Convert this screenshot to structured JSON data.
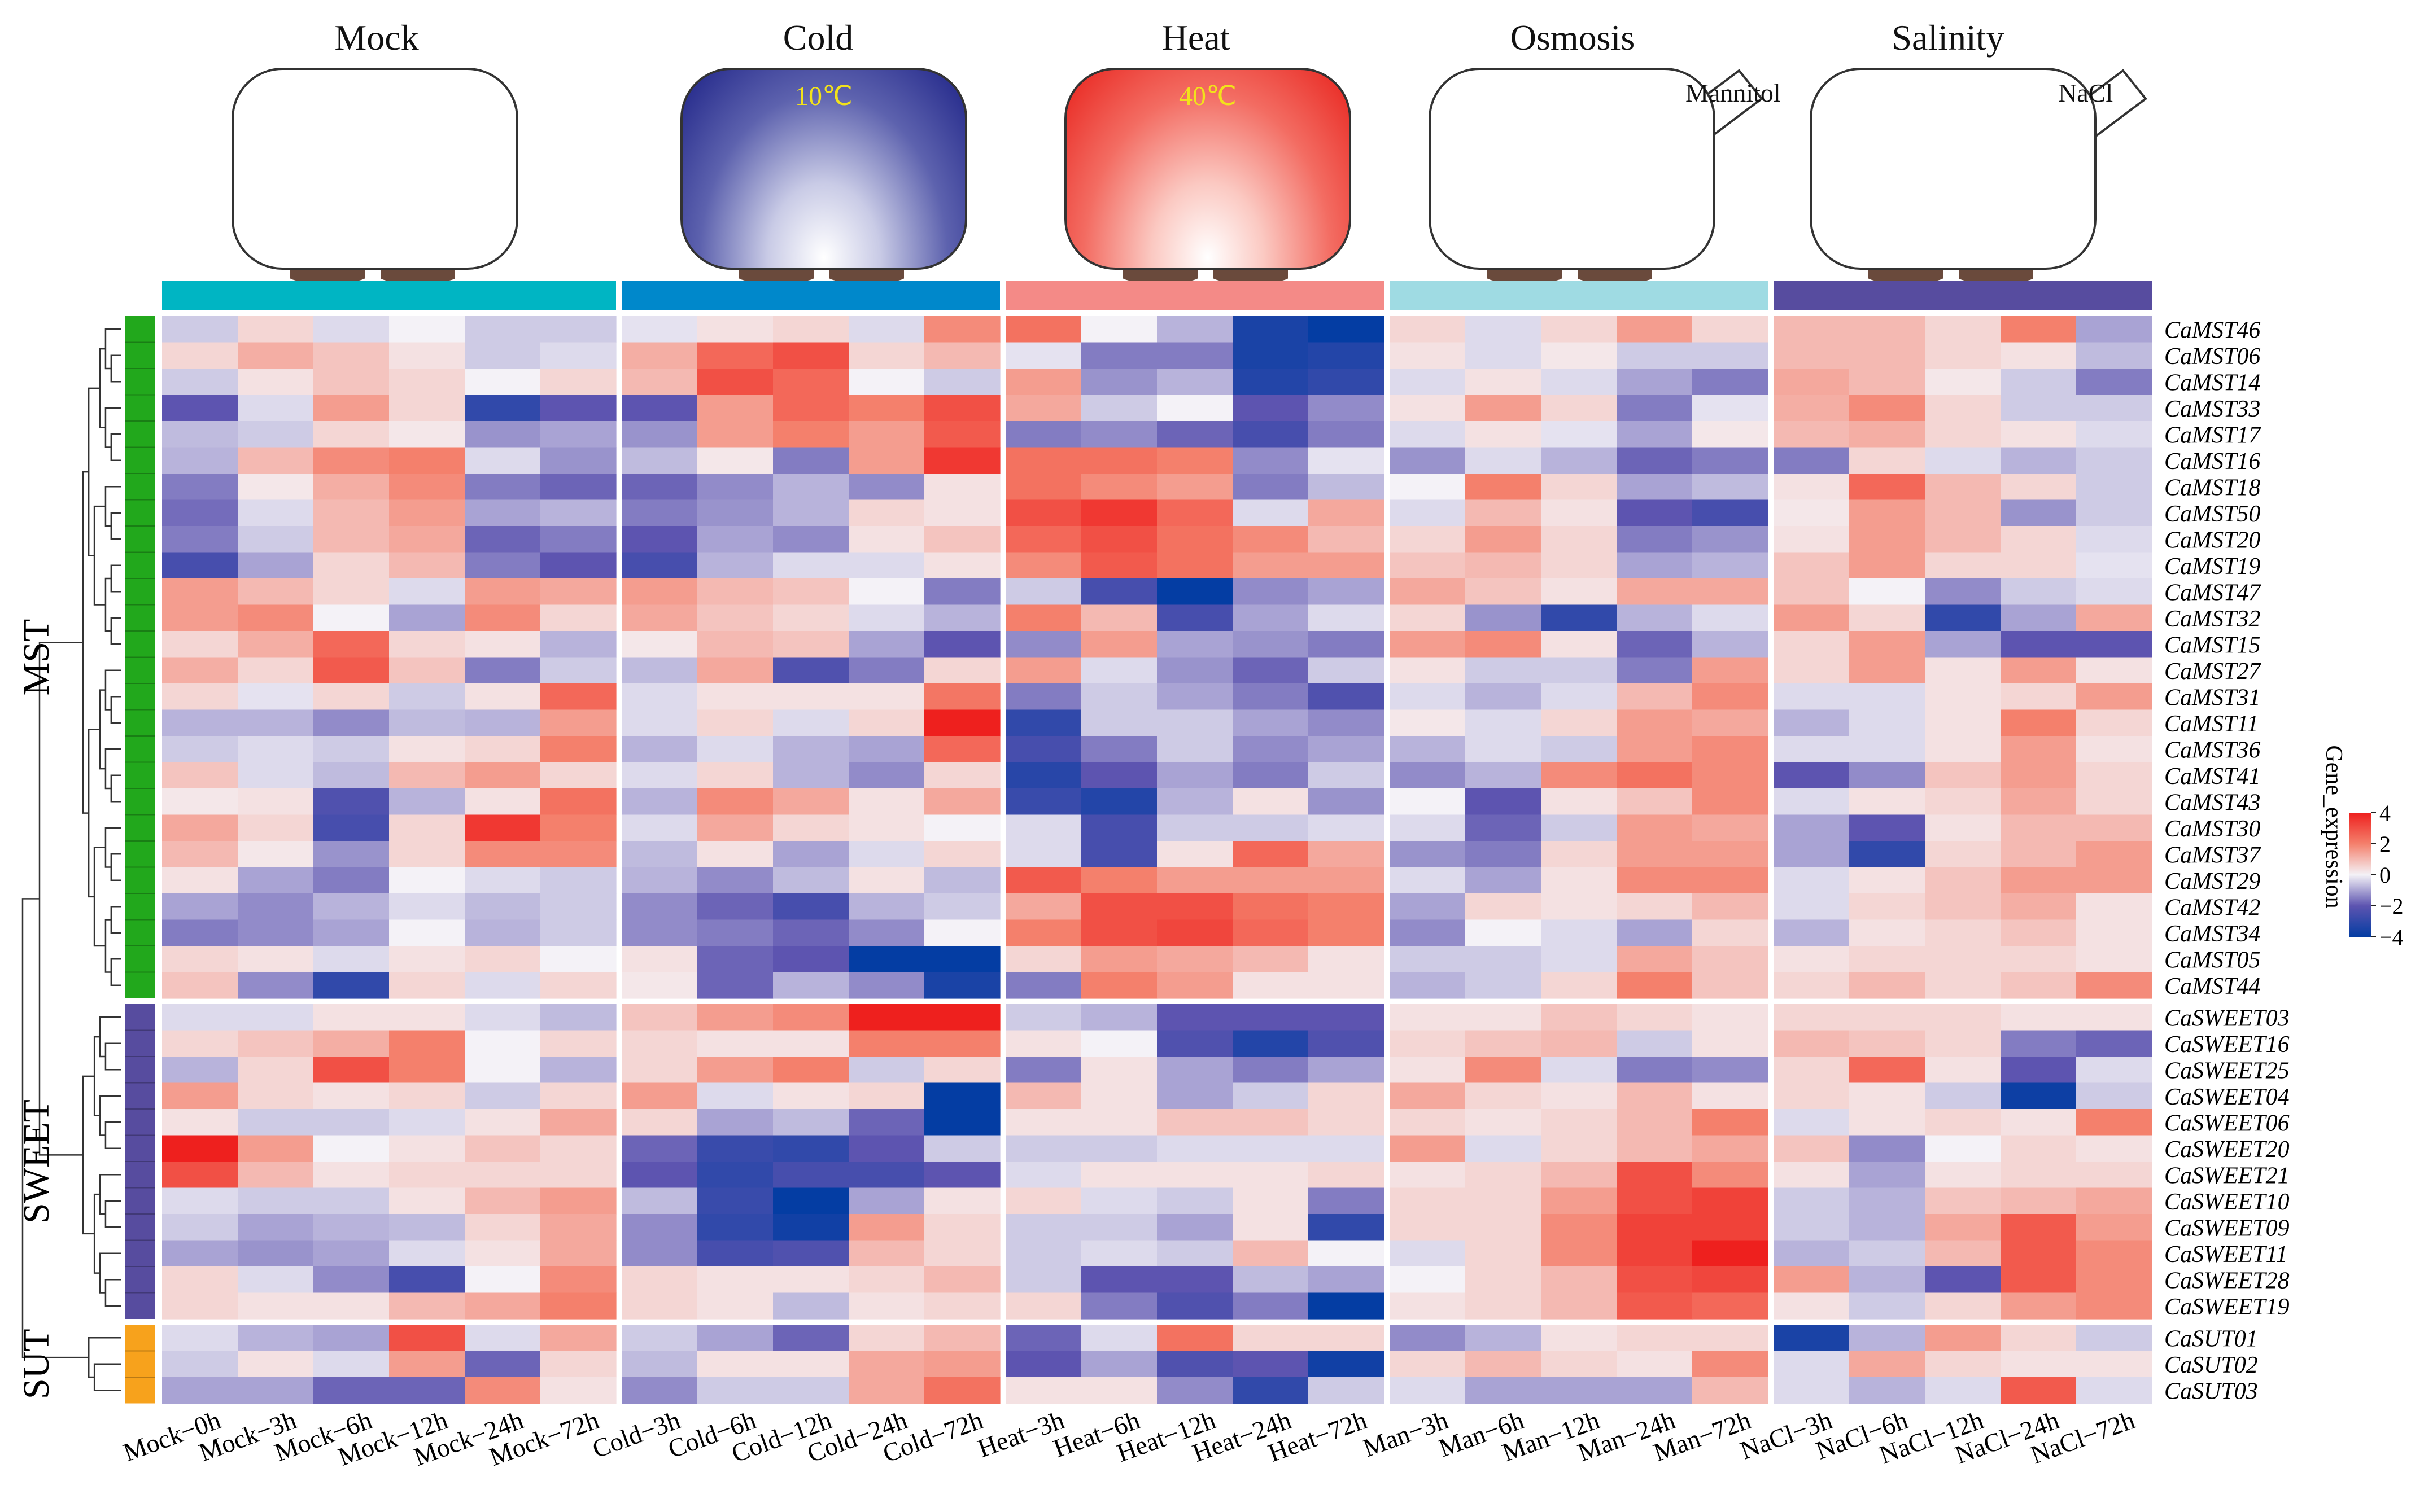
{
  "chart_data": {
    "type": "heatmap",
    "groups": [
      {
        "name": "Mock",
        "color": "#00b5c3"
      },
      {
        "name": "Cold",
        "color": "#0088cb"
      },
      {
        "name": "Heat",
        "color": "#f48a87"
      },
      {
        "name": "Osmosis",
        "color": "#9fdbe3"
      },
      {
        "name": "Salinity",
        "color": "#574c9f"
      }
    ],
    "stage_labels": {
      "cold_temp": "10℃",
      "heat_temp": "40℃",
      "osmosis_agent": "Mannitol",
      "salinity_agent": "NaCl"
    },
    "columns": [
      "Mock−0h",
      "Mock−3h",
      "Mock−6h",
      "Mock−12h",
      "Mock−24h",
      "Mock−72h",
      "Cold−3h",
      "Cold−6h",
      "Cold−12h",
      "Cold−24h",
      "Cold−72h",
      "Heat−3h",
      "Heat−6h",
      "Heat−12h",
      "Heat−24h",
      "Heat−72h",
      "Man−3h",
      "Man−6h",
      "Man−12h",
      "Man−24h",
      "Man−72h",
      "NaCl−3h",
      "NaCl−6h",
      "NaCl−12h",
      "NaCl−24h",
      "NaCl−72h"
    ],
    "column_group_sizes": [
      6,
      5,
      5,
      5,
      5
    ],
    "row_groups": [
      {
        "name": "MST",
        "color": "#22a81c",
        "size": 26
      },
      {
        "name": "SWEET",
        "color": "#574c9f",
        "size": 12
      },
      {
        "name": "SUT",
        "color": "#f7a21c",
        "size": 3
      }
    ],
    "rows": [
      "CaMST46",
      "CaMST06",
      "CaMST14",
      "CaMST33",
      "CaMST17",
      "CaMST16",
      "CaMST18",
      "CaMST50",
      "CaMST20",
      "CaMST19",
      "CaMST47",
      "CaMST32",
      "CaMST15",
      "CaMST27",
      "CaMST31",
      "CaMST11",
      "CaMST36",
      "CaMST41",
      "CaMST43",
      "CaMST30",
      "CaMST37",
      "CaMST29",
      "CaMST42",
      "CaMST34",
      "CaMST05",
      "CaMST44",
      "CaSWEET03",
      "CaSWEET16",
      "CaSWEET25",
      "CaSWEET04",
      "CaSWEET06",
      "CaSWEET20",
      "CaSWEET21",
      "CaSWEET10",
      "CaSWEET09",
      "CaSWEET11",
      "CaSWEET28",
      "CaSWEET19",
      "CaSUT01",
      "CaSUT02",
      "CaSUT03"
    ],
    "values": [
      [
        -0.5,
        0.5,
        -0.3,
        0,
        -0.5,
        -0.5,
        -0.2,
        0.3,
        0.5,
        -0.3,
        1.8,
        2.3,
        0,
        -0.8,
        -3.5,
        -4,
        0.5,
        -0.3,
        0.5,
        1.5,
        0.5,
        1,
        1,
        0.5,
        2,
        -1
      ],
      [
        0.5,
        1.2,
        0.8,
        0.3,
        -0.5,
        -0.3,
        1.2,
        2.5,
        3,
        0.5,
        1,
        -0.2,
        -1.5,
        -1.5,
        -3.5,
        -3.3,
        0.3,
        -0.3,
        0.2,
        -0.5,
        -0.5,
        1,
        1,
        0.5,
        0.3,
        -0.7
      ],
      [
        -0.5,
        0.3,
        0.8,
        0.5,
        0,
        0.5,
        1,
        3,
        2.5,
        0,
        -0.5,
        1.5,
        -1.2,
        -0.8,
        -3.3,
        -3,
        -0.3,
        0.3,
        -0.3,
        -1,
        -1.5,
        1.3,
        1,
        0.2,
        -0.5,
        -1.5
      ],
      [
        -2,
        -0.3,
        1.5,
        0.5,
        -3,
        -2,
        -2,
        1.5,
        2.5,
        2,
        3,
        1.3,
        -0.5,
        0,
        -2,
        -1.3,
        0.3,
        1.5,
        0.5,
        -1.5,
        -0.2,
        1.2,
        1.8,
        0.5,
        -0.5,
        -0.5
      ],
      [
        -0.7,
        -0.5,
        0.5,
        0.2,
        -1.2,
        -1,
        -1.2,
        1.5,
        2,
        1.5,
        2.8,
        -1.5,
        -1.3,
        -1.8,
        -2.5,
        -1.5,
        -0.3,
        0.3,
        -0.2,
        -1,
        0.2,
        1,
        1.2,
        0.5,
        0.3,
        -0.3
      ],
      [
        -0.8,
        1,
        1.8,
        2,
        -0.3,
        -1.2,
        -0.7,
        0.2,
        -1.5,
        1.5,
        3.5,
        2.3,
        2.3,
        2,
        -1.3,
        -0.2,
        -1.2,
        -0.3,
        -0.8,
        -1.8,
        -1.5,
        -1.5,
        0.5,
        -0.3,
        -0.8,
        -0.5
      ],
      [
        -1.5,
        0.2,
        1.2,
        1.8,
        -1.5,
        -1.8,
        -1.8,
        -1.3,
        -0.8,
        -1.3,
        0.3,
        2.3,
        1.8,
        1.5,
        -1.5,
        -0.7,
        0,
        2,
        0.5,
        -1,
        -0.7,
        0.3,
        2.5,
        1,
        0.5,
        -0.5
      ],
      [
        -1.7,
        -0.3,
        1,
        1.5,
        -1,
        -0.8,
        -1.5,
        -1.2,
        -0.8,
        0.5,
        0.3,
        3,
        3.5,
        2.5,
        -0.3,
        1.3,
        -0.3,
        1,
        0.3,
        -2,
        -2.5,
        0.2,
        1.5,
        1,
        -1.2,
        -0.5
      ],
      [
        -1.5,
        -0.5,
        1,
        1.3,
        -1.8,
        -1.5,
        -2,
        -1,
        -1.3,
        0.3,
        0.8,
        2.5,
        3,
        2.3,
        1.8,
        1,
        0.5,
        1.5,
        0.5,
        -1.5,
        -1.2,
        0.3,
        1.5,
        1,
        0.5,
        -0.3
      ],
      [
        -2.5,
        -1,
        0.5,
        1,
        -1.5,
        -2,
        -2.5,
        -0.8,
        -0.3,
        -0.3,
        0.3,
        1.8,
        2.8,
        2.3,
        1.5,
        1.5,
        0.8,
        1,
        0.5,
        -1,
        -0.8,
        0.8,
        1.5,
        0.5,
        0.5,
        -0.2
      ],
      [
        1.5,
        1,
        0.5,
        -0.3,
        1.5,
        1.3,
        1.5,
        1,
        0.8,
        0,
        -1.5,
        -0.5,
        -2.5,
        -4,
        -1.3,
        -1,
        1.3,
        0.8,
        0.3,
        1.3,
        1.3,
        0.8,
        0,
        -1.3,
        -0.5,
        -0.3
      ],
      [
        1.5,
        1.8,
        0,
        -1,
        1.8,
        0.5,
        1.3,
        0.8,
        0.5,
        -0.3,
        -0.8,
        2,
        1,
        -2.5,
        -1,
        -0.3,
        0.5,
        -1.2,
        -3,
        -0.8,
        -0.3,
        1.5,
        0.5,
        -3,
        -1,
        1.3
      ],
      [
        0.5,
        1.2,
        2.5,
        0.5,
        0.3,
        -0.8,
        0.2,
        1,
        0.8,
        -1,
        -2,
        -1.3,
        1.5,
        -1,
        -1.2,
        -1.5,
        1.5,
        1.8,
        0.3,
        -1.8,
        -0.8,
        0.5,
        1.5,
        -1,
        -2,
        -2
      ],
      [
        1.2,
        0.5,
        2.8,
        0.8,
        -1.5,
        -0.5,
        -0.7,
        1.3,
        -2.3,
        -1.5,
        0.5,
        1.5,
        -0.3,
        -1.2,
        -1.8,
        -0.5,
        0.3,
        -0.5,
        -0.5,
        -1.5,
        1.5,
        0.5,
        1.5,
        0.3,
        1.5,
        0.3
      ],
      [
        0.5,
        -0.2,
        0.5,
        -0.5,
        0.3,
        2.5,
        -0.3,
        0.3,
        0.3,
        0.3,
        2.2,
        -1.5,
        -0.5,
        -1,
        -1.5,
        -2.3,
        -0.3,
        -0.8,
        -0.3,
        1,
        1.8,
        -0.3,
        -0.3,
        0.3,
        0.5,
        1.5
      ],
      [
        -0.8,
        -0.8,
        -1.3,
        -0.7,
        -0.8,
        1.5,
        -0.3,
        0.5,
        -0.3,
        0.5,
        4,
        -3,
        -0.5,
        -0.5,
        -1,
        -1.3,
        0.2,
        -0.3,
        0.5,
        1.5,
        1.3,
        -0.8,
        -0.3,
        0.3,
        2,
        0.5
      ],
      [
        -0.5,
        -0.3,
        -0.5,
        0.3,
        0.5,
        2,
        -0.8,
        -0.3,
        -0.8,
        -1,
        2.5,
        -2.5,
        -1.5,
        -0.5,
        -1.3,
        -1,
        -0.8,
        -0.3,
        -0.5,
        1.5,
        1.8,
        -0.3,
        -0.3,
        0.3,
        1.5,
        0.3
      ],
      [
        0.8,
        -0.3,
        -0.7,
        1,
        1.5,
        0.5,
        -0.3,
        0.5,
        -0.8,
        -1.3,
        0.5,
        -3.2,
        -2,
        -1,
        -1.5,
        -0.5,
        -1.3,
        -0.8,
        1.8,
        2.3,
        1.8,
        -2,
        -1.3,
        0.8,
        1.5,
        0.5
      ],
      [
        0.2,
        0.3,
        -2.3,
        -0.8,
        0.3,
        2.3,
        -0.8,
        1.8,
        1.3,
        0.3,
        1.3,
        -2.8,
        -3.3,
        -0.8,
        0.3,
        -1.2,
        0,
        -2,
        0.3,
        0.8,
        1.8,
        -0.3,
        0.3,
        0.5,
        1.3,
        0.5
      ],
      [
        1.3,
        0.5,
        -2.5,
        0.5,
        3.5,
        2,
        -0.3,
        1.3,
        0.5,
        0.3,
        0,
        -0.3,
        -2.5,
        -0.5,
        -0.5,
        -0.3,
        -0.3,
        -1.8,
        -0.5,
        1.5,
        1.3,
        -1,
        -2,
        0.3,
        1,
        1
      ],
      [
        1,
        0.2,
        -1.2,
        0.5,
        1.8,
        1.8,
        -0.7,
        0.3,
        -1,
        -0.3,
        0.5,
        -0.3,
        -2.5,
        0.3,
        2.5,
        1.3,
        -1.2,
        -1.5,
        0.5,
        1.5,
        1.5,
        -1,
        -3,
        0.5,
        1,
        1.5
      ],
      [
        0.3,
        -1,
        -1.5,
        0,
        -0.3,
        -0.5,
        -0.8,
        -1.3,
        -0.7,
        0.3,
        -0.7,
        2.8,
        2,
        1.5,
        1.5,
        1.5,
        -0.3,
        -1,
        0.3,
        1.8,
        1.8,
        -0.3,
        0.3,
        0.8,
        1.5,
        1.5
      ],
      [
        -1,
        -1.3,
        -0.8,
        -0.3,
        -0.7,
        -0.5,
        -1.3,
        -1.8,
        -2.5,
        -0.8,
        -0.5,
        1.3,
        3,
        3,
        2.3,
        2,
        -1,
        0.5,
        0.3,
        0.5,
        1,
        -0.3,
        0.5,
        0.8,
        1.2,
        0.3
      ],
      [
        -1.5,
        -1.3,
        -1,
        0,
        -0.8,
        -0.5,
        -1.3,
        -1.5,
        -1.8,
        -1.3,
        0,
        2,
        3,
        3.2,
        2.5,
        2,
        -1.3,
        0,
        -0.3,
        -1,
        0.5,
        -0.8,
        0.3,
        0.5,
        0.8,
        0.3
      ],
      [
        0.5,
        0.3,
        -0.3,
        0.3,
        0.5,
        0,
        0.3,
        -1.8,
        -2,
        -4,
        -4,
        0.5,
        1.5,
        1.3,
        1,
        0.3,
        -0.5,
        -0.5,
        -0.3,
        1.3,
        0.8,
        0.3,
        0.5,
        0.5,
        0.5,
        0.3
      ],
      [
        0.8,
        -1.3,
        -3,
        0.5,
        -0.3,
        0.5,
        0.2,
        -1.8,
        -0.8,
        -1.3,
        -3.5,
        -1.5,
        2,
        1.5,
        0.3,
        0.3,
        -0.8,
        -0.5,
        0.5,
        2,
        0.8,
        0.5,
        1,
        0.5,
        0.8,
        1.8
      ],
      [
        -0.3,
        -0.3,
        0.3,
        0.3,
        -0.3,
        -0.7,
        0.8,
        1.5,
        1.8,
        4,
        4,
        -0.5,
        -0.8,
        -2,
        -2,
        -2,
        0.3,
        0.3,
        0.8,
        0.5,
        0.3,
        0.5,
        0.5,
        0.5,
        0.3,
        0.3
      ],
      [
        0.5,
        0.8,
        1.2,
        2,
        0,
        0.5,
        0.5,
        0.3,
        0.3,
        2,
        2,
        0.3,
        0,
        -2.3,
        -3.3,
        -2.3,
        0.5,
        0.8,
        1,
        -0.5,
        0.3,
        1,
        0.8,
        0.5,
        -1.5,
        -1.8
      ],
      [
        -0.8,
        0.5,
        3,
        2,
        0,
        -0.8,
        0.5,
        1.5,
        2,
        -0.5,
        0.5,
        -1.5,
        0.3,
        -1,
        -1.5,
        -1,
        0.3,
        1.8,
        -0.3,
        -1.5,
        -1.3,
        0.5,
        2.5,
        0.3,
        -2,
        -0.3
      ],
      [
        1.5,
        0.5,
        0.3,
        0.5,
        -0.5,
        0.5,
        1.5,
        -0.3,
        0.3,
        0.5,
        -4,
        1,
        0.3,
        -1,
        -0.5,
        0.5,
        1.3,
        0.5,
        0.3,
        1,
        0.3,
        0.5,
        0.3,
        -0.5,
        -3.8,
        -0.5
      ],
      [
        0.3,
        -0.5,
        -0.5,
        -0.3,
        0.3,
        1.3,
        0.5,
        -1,
        -0.7,
        -1.8,
        -4,
        0.3,
        0.3,
        0.8,
        0.8,
        0.5,
        0.5,
        0.3,
        0.5,
        1,
        2,
        -0.3,
        0.3,
        0.5,
        0.3,
        2
      ],
      [
        4,
        1.5,
        0,
        0.3,
        0.8,
        0.5,
        -1.8,
        -2.8,
        -3,
        -2,
        -0.5,
        -0.5,
        -0.5,
        -0.3,
        -0.3,
        -0.3,
        1.5,
        -0.3,
        0.5,
        1,
        1.3,
        0.8,
        -1.3,
        0,
        0.5,
        0.3
      ],
      [
        3,
        1,
        0.3,
        0.5,
        0.5,
        0.5,
        -2,
        -3,
        -2.5,
        -2.5,
        -2,
        -0.3,
        0.3,
        0.3,
        0.3,
        0.5,
        0.3,
        0.5,
        1,
        3,
        1.8,
        0.3,
        -1,
        0.3,
        0.5,
        0.5
      ],
      [
        -0.3,
        -0.5,
        -0.5,
        0.3,
        1,
        1.5,
        -0.7,
        -2.8,
        -4,
        -1,
        0.3,
        0.5,
        -0.3,
        -0.5,
        0.3,
        -1.5,
        0.5,
        0.5,
        1.5,
        3,
        3.3,
        -0.5,
        -0.8,
        0.8,
        1,
        1.3
      ],
      [
        -0.5,
        -1,
        -0.8,
        -0.7,
        0.5,
        1.3,
        -1.3,
        -3,
        -3.7,
        1.5,
        0.5,
        -0.5,
        -0.5,
        -1,
        0.3,
        -3,
        0.5,
        0.5,
        1.8,
        3.3,
        3.3,
        -0.5,
        -0.8,
        1.3,
        2.8,
        1.5
      ],
      [
        -1,
        -1.2,
        -1,
        -0.3,
        0.3,
        1.3,
        -1.3,
        -2.5,
        -2.3,
        1,
        0.5,
        -0.5,
        -0.3,
        -0.5,
        1,
        0,
        -0.3,
        0.5,
        1.8,
        3.3,
        4,
        -0.8,
        -0.5,
        1,
        2.8,
        1.8
      ],
      [
        0.5,
        -0.3,
        -1.3,
        -2.5,
        0,
        1.8,
        0.5,
        0.3,
        0.3,
        0.5,
        1,
        -0.5,
        -2,
        -2,
        -0.7,
        -1,
        0,
        0.5,
        1,
        3,
        3.2,
        1.5,
        -0.8,
        -2,
        2.8,
        1.8
      ],
      [
        0.5,
        0.3,
        0.3,
        1,
        1.3,
        2,
        0.5,
        0.3,
        -0.7,
        0.3,
        0.5,
        0.5,
        -1.5,
        -2.3,
        -1.5,
        -4,
        0.3,
        0.5,
        1,
        2.8,
        2.5,
        0.3,
        -0.5,
        0.5,
        1.5,
        1.8
      ],
      [
        -0.3,
        -0.8,
        -1,
        3,
        -0.3,
        1.3,
        -0.5,
        -1,
        -1.8,
        0.5,
        1,
        -1.8,
        -0.3,
        2.3,
        0.5,
        0.5,
        -1.3,
        -0.8,
        0.3,
        0.5,
        0.5,
        -3.5,
        -0.8,
        1.5,
        0.5,
        -0.5
      ],
      [
        -0.5,
        0.3,
        -0.3,
        1.5,
        -1.8,
        0.5,
        -0.7,
        0.3,
        0.3,
        1.3,
        1.5,
        -2,
        -1,
        -2.3,
        -2,
        -3.7,
        0.5,
        1,
        0.5,
        0.3,
        1.8,
        -0.3,
        1.3,
        0.5,
        0.3,
        0.3
      ],
      [
        -1,
        -1,
        -1.8,
        -1.8,
        1.8,
        0.3,
        -1.3,
        -0.5,
        -0.5,
        1.3,
        2.3,
        0.3,
        0.3,
        -1.3,
        -3,
        -0.5,
        -0.3,
        -1,
        -1,
        -1,
        1,
        -0.3,
        -0.8,
        -0.3,
        2.8,
        -0.3
      ]
    ],
    "legend": {
      "title": "Gene_expression",
      "ticks": [
        "4",
        "2",
        "0",
        "−2",
        "−4"
      ],
      "range": [
        -4,
        4
      ],
      "placement": "right"
    }
  }
}
